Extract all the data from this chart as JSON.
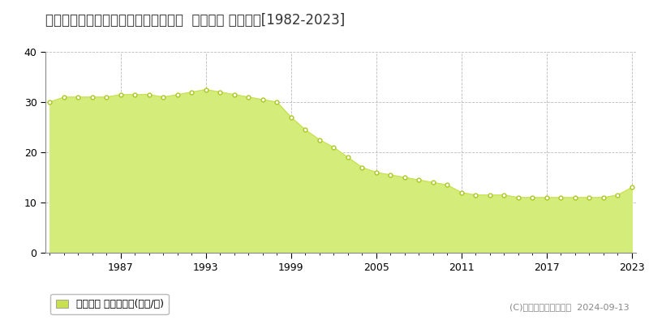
{
  "title": "北海道帯広市東３条南６丁目１番３外  地価公示 地価推移[1982-2023]",
  "years": [
    1982,
    1983,
    1984,
    1985,
    1986,
    1987,
    1988,
    1989,
    1990,
    1991,
    1992,
    1993,
    1994,
    1995,
    1996,
    1997,
    1998,
    1999,
    2000,
    2001,
    2002,
    2003,
    2004,
    2005,
    2006,
    2007,
    2008,
    2009,
    2010,
    2011,
    2012,
    2013,
    2014,
    2015,
    2016,
    2017,
    2018,
    2019,
    2020,
    2021,
    2022,
    2023
  ],
  "values": [
    30.0,
    31.0,
    31.0,
    31.0,
    31.0,
    31.5,
    31.5,
    31.5,
    31.0,
    31.5,
    32.0,
    32.5,
    32.0,
    31.5,
    31.0,
    30.5,
    30.0,
    27.0,
    24.5,
    22.5,
    21.0,
    19.0,
    17.0,
    16.0,
    15.5,
    15.0,
    14.5,
    14.0,
    13.5,
    12.0,
    11.5,
    11.5,
    11.5,
    11.0,
    11.0,
    11.0,
    11.0,
    11.0,
    11.0,
    11.0,
    11.5,
    13.0
  ],
  "fill_color": "#d4ed7a",
  "line_color": "#c8e050",
  "marker_facecolor": "#ffffff",
  "marker_edgecolor": "#aac820",
  "bg_color": "#ffffff",
  "plot_bg_color": "#ffffff",
  "grid_color": "#bbbbbb",
  "ylim": [
    0,
    40
  ],
  "yticks": [
    0,
    10,
    20,
    30,
    40
  ],
  "xticks": [
    1987,
    1993,
    1999,
    2005,
    2011,
    2017,
    2023
  ],
  "legend_label": "地価公示 平均坪単価(万円/坪)",
  "legend_marker_color": "#c8e050",
  "copyright_text": "(C)土地価格ドットコム  2024-09-13",
  "title_fontsize": 12,
  "tick_fontsize": 9,
  "legend_fontsize": 9,
  "copyright_fontsize": 8
}
